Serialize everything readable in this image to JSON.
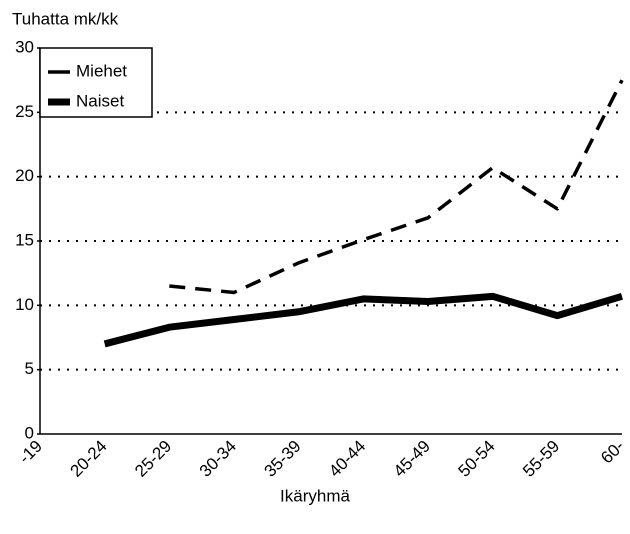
{
  "chart_data": {
    "type": "line",
    "ylabel": "Tuhatta mk/kk",
    "xlabel": "Ikäryhmä",
    "categories": [
      "-19",
      "20-24",
      "25-29",
      "30-34",
      "35-39",
      "40-44",
      "45-49",
      "50-54",
      "55-59",
      "60-"
    ],
    "series": [
      {
        "name": "Miehet",
        "color": "#000000",
        "style": "dashed",
        "values": [
          null,
          null,
          11.5,
          11,
          13.3,
          15.1,
          16.8,
          20.7,
          17.5,
          27.5
        ]
      },
      {
        "name": "Naiset",
        "color": "#000000",
        "style": "solid",
        "values": [
          null,
          7,
          8.3,
          8.9,
          9.5,
          10.5,
          10.3,
          10.7,
          9.2,
          10.7
        ]
      }
    ],
    "ylim": [
      0,
      30
    ],
    "yticks": [
      0,
      5,
      10,
      15,
      20,
      25,
      30
    ],
    "grid": true,
    "legend": "upper left"
  }
}
